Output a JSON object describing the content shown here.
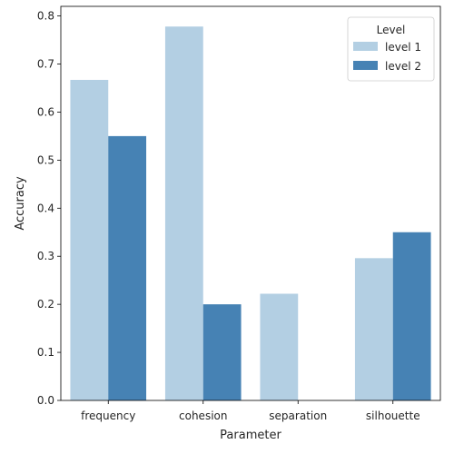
{
  "chart_data": {
    "type": "bar",
    "xlabel": "Parameter",
    "ylabel": "Accuracy",
    "ylim": [
      0,
      0.82
    ],
    "yticks": [
      0.0,
      0.1,
      0.2,
      0.3,
      0.4,
      0.5,
      0.6,
      0.7,
      0.8
    ],
    "ytick_labels": [
      "0.0",
      "0.1",
      "0.2",
      "0.3",
      "0.4",
      "0.5",
      "0.6",
      "0.7",
      "0.8"
    ],
    "categories": [
      "frequency",
      "cohesion",
      "separation",
      "silhouette"
    ],
    "series": [
      {
        "name": "level 1",
        "color": "#b3cfe3",
        "values": [
          0.667,
          0.778,
          0.222,
          0.296
        ]
      },
      {
        "name": "level 2",
        "color": "#4682b4",
        "values": [
          0.55,
          0.2,
          0.0,
          0.35
        ]
      }
    ],
    "legend": {
      "title": "Level",
      "placement": "top-right"
    },
    "grid": false
  }
}
